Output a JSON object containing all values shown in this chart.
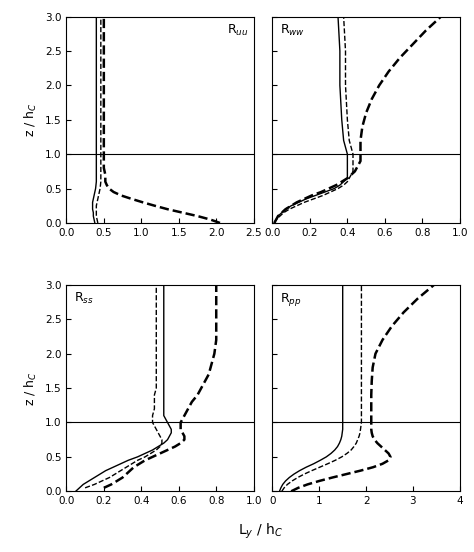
{
  "ylabel": "z / h$_C$",
  "xlabel": "L$_y$ / h$_C$",
  "hline": 1.0,
  "panels": [
    {
      "label": "R$_{uu}$",
      "label_loc": "upper right",
      "xlim": [
        0.0,
        2.5
      ],
      "xticks": [
        0.0,
        0.5,
        1.0,
        1.5,
        2.0,
        2.5
      ],
      "lines": [
        {
          "style": "solid",
          "lw": 1.0,
          "z": [
            0.0,
            0.05,
            0.1,
            0.15,
            0.2,
            0.25,
            0.3,
            0.35,
            0.4,
            0.45,
            0.5,
            0.6,
            0.7,
            0.8,
            0.9,
            1.0,
            1.2,
            1.5,
            2.0,
            2.5,
            3.0
          ],
          "x": [
            0.38,
            0.37,
            0.36,
            0.36,
            0.35,
            0.35,
            0.35,
            0.36,
            0.37,
            0.38,
            0.39,
            0.4,
            0.4,
            0.4,
            0.4,
            0.4,
            0.4,
            0.4,
            0.4,
            0.4,
            0.4
          ]
        },
        {
          "style": "dashed",
          "lw": 1.0,
          "z": [
            0.0,
            0.05,
            0.1,
            0.15,
            0.2,
            0.25,
            0.3,
            0.35,
            0.4,
            0.45,
            0.5,
            0.6,
            0.7,
            0.8,
            0.9,
            1.0,
            1.2,
            1.5,
            2.0,
            2.5,
            3.0
          ],
          "x": [
            0.42,
            0.41,
            0.4,
            0.4,
            0.4,
            0.4,
            0.41,
            0.42,
            0.43,
            0.44,
            0.45,
            0.46,
            0.46,
            0.46,
            0.46,
            0.46,
            0.46,
            0.46,
            0.46,
            0.46,
            0.46
          ]
        },
        {
          "style": "dashed",
          "lw": 1.8,
          "z": [
            0.0,
            0.05,
            0.1,
            0.15,
            0.2,
            0.25,
            0.3,
            0.35,
            0.4,
            0.45,
            0.5,
            0.55,
            0.6,
            0.65,
            0.7,
            0.75,
            0.8,
            0.85,
            0.9,
            0.95,
            1.0,
            1.1,
            1.5,
            2.0,
            3.0
          ],
          "x": [
            2.05,
            1.92,
            1.75,
            1.55,
            1.35,
            1.18,
            1.02,
            0.87,
            0.73,
            0.63,
            0.57,
            0.54,
            0.52,
            0.52,
            0.52,
            0.51,
            0.5,
            0.5,
            0.5,
            0.5,
            0.5,
            0.5,
            0.5,
            0.5,
            0.5
          ]
        }
      ]
    },
    {
      "label": "R$_{ww}$",
      "label_loc": "upper left",
      "xlim": [
        0.0,
        1.0
      ],
      "xticks": [
        0.0,
        0.2,
        0.4,
        0.6,
        0.8,
        1.0
      ],
      "lines": [
        {
          "style": "solid",
          "lw": 1.0,
          "z": [
            0.0,
            0.05,
            0.1,
            0.15,
            0.2,
            0.25,
            0.3,
            0.35,
            0.4,
            0.45,
            0.5,
            0.55,
            0.6,
            0.65,
            0.7,
            0.75,
            0.8,
            0.85,
            0.9,
            0.95,
            1.0,
            1.1,
            1.2,
            1.5,
            2.0,
            2.5,
            3.0
          ],
          "x": [
            0.01,
            0.02,
            0.03,
            0.05,
            0.07,
            0.1,
            0.14,
            0.18,
            0.23,
            0.28,
            0.33,
            0.36,
            0.38,
            0.4,
            0.4,
            0.4,
            0.4,
            0.4,
            0.4,
            0.4,
            0.4,
            0.39,
            0.38,
            0.37,
            0.36,
            0.36,
            0.35
          ]
        },
        {
          "style": "dashed",
          "lw": 1.0,
          "z": [
            0.0,
            0.05,
            0.1,
            0.15,
            0.2,
            0.25,
            0.3,
            0.35,
            0.4,
            0.45,
            0.5,
            0.55,
            0.6,
            0.65,
            0.7,
            0.75,
            0.8,
            0.85,
            0.9,
            0.95,
            1.0,
            1.1,
            1.2,
            1.5,
            2.0,
            2.5,
            3.0
          ],
          "x": [
            0.01,
            0.02,
            0.04,
            0.06,
            0.09,
            0.13,
            0.17,
            0.22,
            0.27,
            0.31,
            0.35,
            0.38,
            0.4,
            0.41,
            0.42,
            0.43,
            0.43,
            0.43,
            0.43,
            0.43,
            0.43,
            0.42,
            0.41,
            0.4,
            0.39,
            0.39,
            0.38
          ]
        },
        {
          "style": "dashed",
          "lw": 1.8,
          "z": [
            0.0,
            0.05,
            0.1,
            0.15,
            0.2,
            0.25,
            0.3,
            0.35,
            0.4,
            0.45,
            0.5,
            0.55,
            0.6,
            0.65,
            0.7,
            0.75,
            0.8,
            0.85,
            0.9,
            0.95,
            1.0,
            1.1,
            1.2,
            1.4,
            1.6,
            1.8,
            2.0,
            2.2,
            2.4,
            2.6,
            2.8,
            3.0
          ],
          "x": [
            0.01,
            0.02,
            0.03,
            0.05,
            0.07,
            0.1,
            0.13,
            0.17,
            0.21,
            0.26,
            0.3,
            0.34,
            0.37,
            0.4,
            0.42,
            0.44,
            0.45,
            0.46,
            0.47,
            0.47,
            0.47,
            0.47,
            0.47,
            0.48,
            0.5,
            0.53,
            0.57,
            0.62,
            0.68,
            0.75,
            0.82,
            0.9
          ]
        }
      ]
    },
    {
      "label": "R$_{ss}$",
      "label_loc": "upper left",
      "xlim": [
        0.0,
        1.0
      ],
      "xticks": [
        0.0,
        0.2,
        0.4,
        0.6,
        0.8,
        1.0
      ],
      "lines": [
        {
          "style": "solid",
          "lw": 1.0,
          "z": [
            0.0,
            0.05,
            0.1,
            0.15,
            0.2,
            0.25,
            0.3,
            0.35,
            0.4,
            0.45,
            0.5,
            0.55,
            0.6,
            0.65,
            0.7,
            0.75,
            0.8,
            0.85,
            0.9,
            0.95,
            1.0,
            1.05,
            1.1,
            1.15,
            1.2,
            1.3,
            1.4,
            1.5,
            1.6,
            1.7,
            1.8,
            1.9,
            2.0,
            2.5,
            3.0
          ],
          "x": [
            0.05,
            0.07,
            0.09,
            0.12,
            0.15,
            0.18,
            0.21,
            0.25,
            0.29,
            0.33,
            0.38,
            0.42,
            0.46,
            0.49,
            0.52,
            0.54,
            0.55,
            0.56,
            0.56,
            0.55,
            0.54,
            0.53,
            0.52,
            0.52,
            0.52,
            0.52,
            0.52,
            0.52,
            0.52,
            0.52,
            0.52,
            0.52,
            0.52,
            0.52,
            0.52
          ]
        },
        {
          "style": "dashed",
          "lw": 1.0,
          "z": [
            0.05,
            0.1,
            0.15,
            0.2,
            0.25,
            0.3,
            0.35,
            0.4,
            0.45,
            0.5,
            0.55,
            0.6,
            0.65,
            0.7,
            0.75,
            0.8,
            0.85,
            0.9,
            0.95,
            1.0,
            1.05,
            1.1,
            1.2,
            1.3,
            1.4,
            1.5,
            1.6,
            1.7,
            1.8,
            1.9,
            2.0,
            2.2,
            2.4,
            2.6,
            2.8,
            3.0
          ],
          "x": [
            0.1,
            0.15,
            0.19,
            0.23,
            0.26,
            0.29,
            0.32,
            0.35,
            0.38,
            0.42,
            0.45,
            0.48,
            0.5,
            0.51,
            0.51,
            0.5,
            0.49,
            0.48,
            0.47,
            0.46,
            0.46,
            0.46,
            0.47,
            0.47,
            0.47,
            0.48,
            0.48,
            0.48,
            0.48,
            0.48,
            0.48,
            0.48,
            0.48,
            0.48,
            0.48,
            0.48
          ]
        },
        {
          "style": "dashed",
          "lw": 1.8,
          "z": [
            0.05,
            0.1,
            0.15,
            0.2,
            0.25,
            0.3,
            0.35,
            0.4,
            0.45,
            0.5,
            0.55,
            0.6,
            0.65,
            0.7,
            0.75,
            0.8,
            0.85,
            0.9,
            0.95,
            1.0,
            1.05,
            1.1,
            1.2,
            1.3,
            1.4,
            1.5,
            1.6,
            1.7,
            1.8,
            1.9,
            2.0,
            2.2,
            2.4,
            2.6,
            2.8,
            3.0
          ],
          "x": [
            0.2,
            0.24,
            0.27,
            0.3,
            0.32,
            0.34,
            0.36,
            0.39,
            0.42,
            0.46,
            0.5,
            0.54,
            0.58,
            0.61,
            0.63,
            0.63,
            0.62,
            0.61,
            0.61,
            0.61,
            0.62,
            0.63,
            0.65,
            0.67,
            0.7,
            0.72,
            0.74,
            0.76,
            0.77,
            0.78,
            0.79,
            0.8,
            0.8,
            0.8,
            0.8,
            0.8
          ]
        }
      ]
    },
    {
      "label": "R$_{pp}$",
      "label_loc": "upper left",
      "xlim": [
        0.0,
        4.0
      ],
      "xticks": [
        0,
        1,
        2,
        3,
        4
      ],
      "lines": [
        {
          "style": "solid",
          "lw": 1.0,
          "z": [
            0.0,
            0.05,
            0.1,
            0.15,
            0.2,
            0.25,
            0.3,
            0.35,
            0.4,
            0.45,
            0.5,
            0.55,
            0.6,
            0.65,
            0.7,
            0.75,
            0.8,
            0.85,
            0.9,
            0.95,
            1.0,
            1.05,
            1.1,
            1.15,
            1.2,
            1.3,
            1.5,
            2.0,
            3.0
          ],
          "x": [
            0.15,
            0.18,
            0.22,
            0.28,
            0.36,
            0.46,
            0.58,
            0.72,
            0.88,
            1.02,
            1.15,
            1.25,
            1.33,
            1.39,
            1.43,
            1.46,
            1.48,
            1.49,
            1.5,
            1.5,
            1.5,
            1.5,
            1.5,
            1.5,
            1.5,
            1.5,
            1.5,
            1.5,
            1.5
          ]
        },
        {
          "style": "dashed",
          "lw": 1.0,
          "z": [
            0.0,
            0.05,
            0.1,
            0.15,
            0.2,
            0.25,
            0.3,
            0.35,
            0.4,
            0.45,
            0.5,
            0.55,
            0.6,
            0.65,
            0.7,
            0.75,
            0.8,
            0.85,
            0.9,
            0.95,
            1.0,
            1.05,
            1.1,
            1.2,
            1.3,
            1.5,
            2.0,
            3.0
          ],
          "x": [
            0.2,
            0.25,
            0.32,
            0.42,
            0.54,
            0.68,
            0.84,
            1.01,
            1.18,
            1.34,
            1.48,
            1.59,
            1.68,
            1.74,
            1.79,
            1.82,
            1.85,
            1.87,
            1.88,
            1.89,
            1.9,
            1.9,
            1.9,
            1.9,
            1.9,
            1.9,
            1.9,
            1.9
          ]
        },
        {
          "style": "dashed",
          "lw": 1.8,
          "z": [
            0.0,
            0.05,
            0.1,
            0.15,
            0.2,
            0.25,
            0.3,
            0.35,
            0.4,
            0.45,
            0.5,
            0.55,
            0.6,
            0.65,
            0.7,
            0.75,
            0.8,
            0.85,
            0.9,
            0.95,
            1.0,
            1.1,
            1.2,
            1.4,
            1.6,
            1.8,
            2.0,
            2.2,
            2.4,
            2.6,
            2.8,
            3.0
          ],
          "x": [
            0.4,
            0.55,
            0.75,
            1.0,
            1.28,
            1.58,
            1.88,
            2.15,
            2.35,
            2.48,
            2.52,
            2.48,
            2.4,
            2.32,
            2.24,
            2.18,
            2.14,
            2.12,
            2.11,
            2.11,
            2.11,
            2.11,
            2.11,
            2.11,
            2.12,
            2.14,
            2.2,
            2.35,
            2.55,
            2.8,
            3.1,
            3.45
          ]
        }
      ]
    }
  ]
}
